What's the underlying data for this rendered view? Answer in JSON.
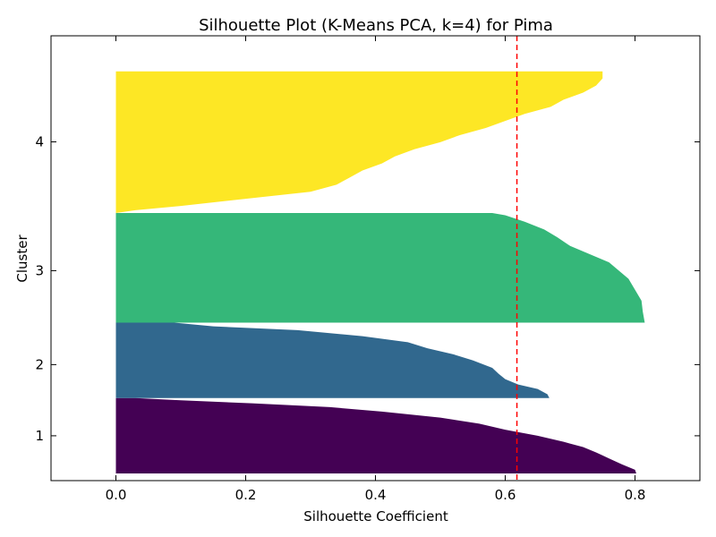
{
  "chart_data": {
    "type": "silhouette",
    "title": "Silhouette Plot (K-Means PCA, k=4) for Pima",
    "xlabel": "Silhouette Coefficient",
    "ylabel": "Cluster",
    "xlim": [
      -0.1,
      0.9
    ],
    "xticks": [
      0.0,
      0.2,
      0.4,
      0.6,
      0.8
    ],
    "xtick_labels": [
      "0.0",
      "0.2",
      "0.4",
      "0.6",
      "0.8"
    ],
    "grid": false,
    "average_silhouette": 0.618,
    "average_line_color": "#ff0000",
    "clusters": [
      {
        "label": "1",
        "color": "#440154",
        "y_start": 0,
        "y_end": 106,
        "label_y": 53,
        "profile": [
          [
            0,
            0.802
          ],
          [
            0.05,
            0.8
          ],
          [
            0.12,
            0.78
          ],
          [
            0.2,
            0.76
          ],
          [
            0.28,
            0.74
          ],
          [
            0.35,
            0.72
          ],
          [
            0.42,
            0.69
          ],
          [
            0.5,
            0.65
          ],
          [
            0.58,
            0.6
          ],
          [
            0.66,
            0.56
          ],
          [
            0.74,
            0.5
          ],
          [
            0.82,
            0.41
          ],
          [
            0.88,
            0.33
          ],
          [
            0.93,
            0.21
          ],
          [
            0.97,
            0.1
          ],
          [
            1.0,
            0.03
          ]
        ]
      },
      {
        "label": "2",
        "color": "#31688e",
        "y_start": 106,
        "y_end": 212,
        "label_y": 153,
        "profile": [
          [
            0,
            0.668
          ],
          [
            0.05,
            0.665
          ],
          [
            0.12,
            0.65
          ],
          [
            0.18,
            0.62
          ],
          [
            0.25,
            0.6
          ],
          [
            0.32,
            0.59
          ],
          [
            0.4,
            0.58
          ],
          [
            0.5,
            0.55
          ],
          [
            0.58,
            0.52
          ],
          [
            0.66,
            0.48
          ],
          [
            0.74,
            0.45
          ],
          [
            0.82,
            0.38
          ],
          [
            0.9,
            0.28
          ],
          [
            0.95,
            0.15
          ],
          [
            1.0,
            0.09
          ]
        ]
      },
      {
        "label": "3",
        "color": "#35b779",
        "y_start": 212,
        "y_end": 366,
        "label_y": 285,
        "profile": [
          [
            0,
            0.815
          ],
          [
            0.1,
            0.812
          ],
          [
            0.2,
            0.81
          ],
          [
            0.3,
            0.8
          ],
          [
            0.4,
            0.79
          ],
          [
            0.5,
            0.77
          ],
          [
            0.55,
            0.76
          ],
          [
            0.6,
            0.74
          ],
          [
            0.65,
            0.72
          ],
          [
            0.7,
            0.7
          ],
          [
            0.78,
            0.68
          ],
          [
            0.85,
            0.66
          ],
          [
            0.92,
            0.63
          ],
          [
            0.98,
            0.6
          ],
          [
            1.0,
            0.58
          ]
        ]
      },
      {
        "label": "4",
        "color": "#fde725",
        "y_start": 366,
        "y_end": 565,
        "label_y": 466,
        "profile": [
          [
            0,
            0.0
          ],
          [
            0.02,
            0.03
          ],
          [
            0.05,
            0.1
          ],
          [
            0.1,
            0.2
          ],
          [
            0.15,
            0.3
          ],
          [
            0.2,
            0.34
          ],
          [
            0.25,
            0.36
          ],
          [
            0.3,
            0.38
          ],
          [
            0.35,
            0.41
          ],
          [
            0.4,
            0.43
          ],
          [
            0.45,
            0.46
          ],
          [
            0.5,
            0.5
          ],
          [
            0.55,
            0.53
          ],
          [
            0.6,
            0.57
          ],
          [
            0.65,
            0.6
          ],
          [
            0.7,
            0.63
          ],
          [
            0.75,
            0.67
          ],
          [
            0.8,
            0.69
          ],
          [
            0.85,
            0.72
          ],
          [
            0.9,
            0.74
          ],
          [
            0.95,
            0.75
          ],
          [
            1.0,
            0.75
          ]
        ]
      }
    ],
    "ylim": [
      -10,
      615
    ]
  }
}
